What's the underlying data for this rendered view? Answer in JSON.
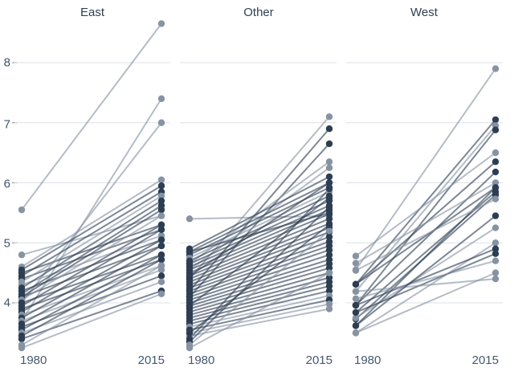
{
  "chart_data": {
    "type": "line",
    "subtype": "slopegraph",
    "title": "",
    "xlabel": "",
    "ylabel": "",
    "x_categories": [
      "1980",
      "2015"
    ],
    "yticks": [
      "8",
      "7",
      "6",
      "5",
      "4"
    ],
    "ytick_values": [
      8,
      7,
      6,
      5,
      4
    ],
    "ylim": [
      3.1,
      8.8
    ],
    "grid": "horizontal",
    "legend": "none",
    "colors": {
      "dark": "#2d3e52",
      "gray": "#8793a3",
      "grid": "#dce1e7",
      "tick": "#9aa6b3"
    },
    "panels": [
      {
        "title": "East",
        "lines": [
          {
            "s": 5.55,
            "e": 8.65,
            "c": "gray"
          },
          {
            "s": 3.7,
            "e": 7.4,
            "c": "gray"
          },
          {
            "s": 4.0,
            "e": 7.0,
            "c": "gray"
          },
          {
            "s": 4.8,
            "e": 5.45,
            "c": "gray"
          },
          {
            "s": 4.6,
            "e": 6.05,
            "c": "gray"
          },
          {
            "s": 4.55,
            "e": 5.95,
            "c": "dark"
          },
          {
            "s": 4.5,
            "e": 5.3,
            "c": "dark"
          },
          {
            "s": 4.45,
            "e": 5.85,
            "c": "dark"
          },
          {
            "s": 4.4,
            "e": 5.22,
            "c": "dark"
          },
          {
            "s": 4.35,
            "e": 5.78,
            "c": "gray"
          },
          {
            "s": 4.3,
            "e": 5.12,
            "c": "gray"
          },
          {
            "s": 4.25,
            "e": 5.7,
            "c": "dark"
          },
          {
            "s": 4.2,
            "e": 5.05,
            "c": "dark"
          },
          {
            "s": 4.15,
            "e": 5.62,
            "c": "dark"
          },
          {
            "s": 4.1,
            "e": 4.95,
            "c": "dark"
          },
          {
            "s": 4.1,
            "e": 5.55,
            "c": "dark"
          },
          {
            "s": 4.05,
            "e": 5.45,
            "c": "gray"
          },
          {
            "s": 4.0,
            "e": 4.8,
            "c": "dark"
          },
          {
            "s": 3.95,
            "e": 5.3,
            "c": "dark"
          },
          {
            "s": 3.9,
            "e": 4.72,
            "c": "dark"
          },
          {
            "s": 3.85,
            "e": 5.22,
            "c": "dark"
          },
          {
            "s": 3.8,
            "e": 4.62,
            "c": "gray"
          },
          {
            "s": 3.75,
            "e": 5.05,
            "c": "dark"
          },
          {
            "s": 3.7,
            "e": 4.55,
            "c": "gray"
          },
          {
            "s": 3.65,
            "e": 4.95,
            "c": "dark"
          },
          {
            "s": 3.6,
            "e": 4.45,
            "c": "dark"
          },
          {
            "s": 3.55,
            "e": 4.8,
            "c": "dark"
          },
          {
            "s": 3.5,
            "e": 4.35,
            "c": "gray"
          },
          {
            "s": 3.45,
            "e": 4.72,
            "c": "dark"
          },
          {
            "s": 3.4,
            "e": 4.2,
            "c": "dark"
          },
          {
            "s": 3.3,
            "e": 4.62,
            "c": "gray"
          },
          {
            "s": 3.25,
            "e": 4.15,
            "c": "gray"
          }
        ]
      },
      {
        "title": "Other",
        "lines": [
          {
            "s": 5.4,
            "e": 5.45,
            "c": "gray"
          },
          {
            "s": 4.4,
            "e": 7.1,
            "c": "gray"
          },
          {
            "s": 4.2,
            "e": 6.9,
            "c": "dark"
          },
          {
            "s": 4.1,
            "e": 6.65,
            "c": "dark"
          },
          {
            "s": 4.65,
            "e": 6.35,
            "c": "gray"
          },
          {
            "s": 4.55,
            "e": 6.25,
            "c": "gray"
          },
          {
            "s": 4.9,
            "e": 6.1,
            "c": "dark"
          },
          {
            "s": 4.85,
            "e": 6.0,
            "c": "dark"
          },
          {
            "s": 4.8,
            "e": 5.92,
            "c": "dark"
          },
          {
            "s": 4.75,
            "e": 5.85,
            "c": "gray"
          },
          {
            "s": 4.7,
            "e": 5.78,
            "c": "dark"
          },
          {
            "s": 4.65,
            "e": 5.7,
            "c": "dark"
          },
          {
            "s": 4.6,
            "e": 5.62,
            "c": "dark"
          },
          {
            "s": 4.55,
            "e": 5.55,
            "c": "dark"
          },
          {
            "s": 4.5,
            "e": 5.48,
            "c": "dark"
          },
          {
            "s": 4.45,
            "e": 5.4,
            "c": "dark"
          },
          {
            "s": 4.4,
            "e": 5.32,
            "c": "dark"
          },
          {
            "s": 4.35,
            "e": 5.25,
            "c": "dark"
          },
          {
            "s": 4.3,
            "e": 5.18,
            "c": "dark"
          },
          {
            "s": 4.25,
            "e": 5.1,
            "c": "dark"
          },
          {
            "s": 4.2,
            "e": 5.02,
            "c": "dark"
          },
          {
            "s": 4.15,
            "e": 4.95,
            "c": "dark"
          },
          {
            "s": 4.1,
            "e": 4.88,
            "c": "dark"
          },
          {
            "s": 4.05,
            "e": 4.8,
            "c": "dark"
          },
          {
            "s": 4.0,
            "e": 4.72,
            "c": "dark"
          },
          {
            "s": 3.95,
            "e": 4.65,
            "c": "dark"
          },
          {
            "s": 3.9,
            "e": 4.58,
            "c": "dark"
          },
          {
            "s": 3.85,
            "e": 4.5,
            "c": "dark"
          },
          {
            "s": 3.8,
            "e": 4.42,
            "c": "dark"
          },
          {
            "s": 3.75,
            "e": 4.35,
            "c": "dark"
          },
          {
            "s": 3.7,
            "e": 4.28,
            "c": "dark"
          },
          {
            "s": 3.65,
            "e": 4.2,
            "c": "dark"
          },
          {
            "s": 3.6,
            "e": 4.12,
            "c": "gray"
          },
          {
            "s": 3.55,
            "e": 4.05,
            "c": "dark"
          },
          {
            "s": 3.5,
            "e": 3.98,
            "c": "gray"
          },
          {
            "s": 3.45,
            "e": 3.9,
            "c": "gray"
          },
          {
            "s": 3.4,
            "e": 5.9,
            "c": "dark"
          },
          {
            "s": 3.35,
            "e": 5.6,
            "c": "dark"
          },
          {
            "s": 3.3,
            "e": 5.2,
            "c": "gray"
          },
          {
            "s": 3.25,
            "e": 4.5,
            "c": "gray"
          },
          {
            "s": 4.85,
            "e": 5.5,
            "c": "dark"
          },
          {
            "s": 4.45,
            "e": 6.0,
            "c": "dark"
          },
          {
            "s": 3.95,
            "e": 5.75,
            "c": "dark"
          },
          {
            "s": 3.5,
            "e": 5.3,
            "c": "dark"
          }
        ]
      },
      {
        "title": "West",
        "lines": [
          {
            "s": 4.55,
            "e": 7.9,
            "c": "gray"
          },
          {
            "s": 4.31,
            "e": 7.05,
            "c": "dark"
          },
          {
            "s": 4.19,
            "e": 6.95,
            "c": "gray"
          },
          {
            "s": 3.96,
            "e": 6.88,
            "c": "dark"
          },
          {
            "s": 4.78,
            "e": 6.5,
            "c": "gray"
          },
          {
            "s": 4.31,
            "e": 6.35,
            "c": "dark"
          },
          {
            "s": 3.96,
            "e": 6.18,
            "c": "dark"
          },
          {
            "s": 4.66,
            "e": 6.0,
            "c": "gray"
          },
          {
            "s": 4.31,
            "e": 5.92,
            "c": "dark"
          },
          {
            "s": 3.62,
            "e": 5.92,
            "c": "dark"
          },
          {
            "s": 3.84,
            "e": 5.85,
            "c": "dark"
          },
          {
            "s": 3.73,
            "e": 5.8,
            "c": "dark"
          },
          {
            "s": 4.54,
            "e": 5.73,
            "c": "gray"
          },
          {
            "s": 3.75,
            "e": 5.25,
            "c": "gray"
          },
          {
            "s": 3.5,
            "e": 5.0,
            "c": "gray"
          },
          {
            "s": 3.96,
            "e": 4.9,
            "c": "dark"
          },
          {
            "s": 3.84,
            "e": 4.82,
            "c": "dark"
          },
          {
            "s": 4.07,
            "e": 4.7,
            "c": "gray"
          },
          {
            "s": 3.5,
            "e": 4.5,
            "c": "gray"
          },
          {
            "s": 4.19,
            "e": 4.4,
            "c": "gray"
          },
          {
            "s": 3.62,
            "e": 5.45,
            "c": "dark"
          }
        ]
      }
    ]
  }
}
